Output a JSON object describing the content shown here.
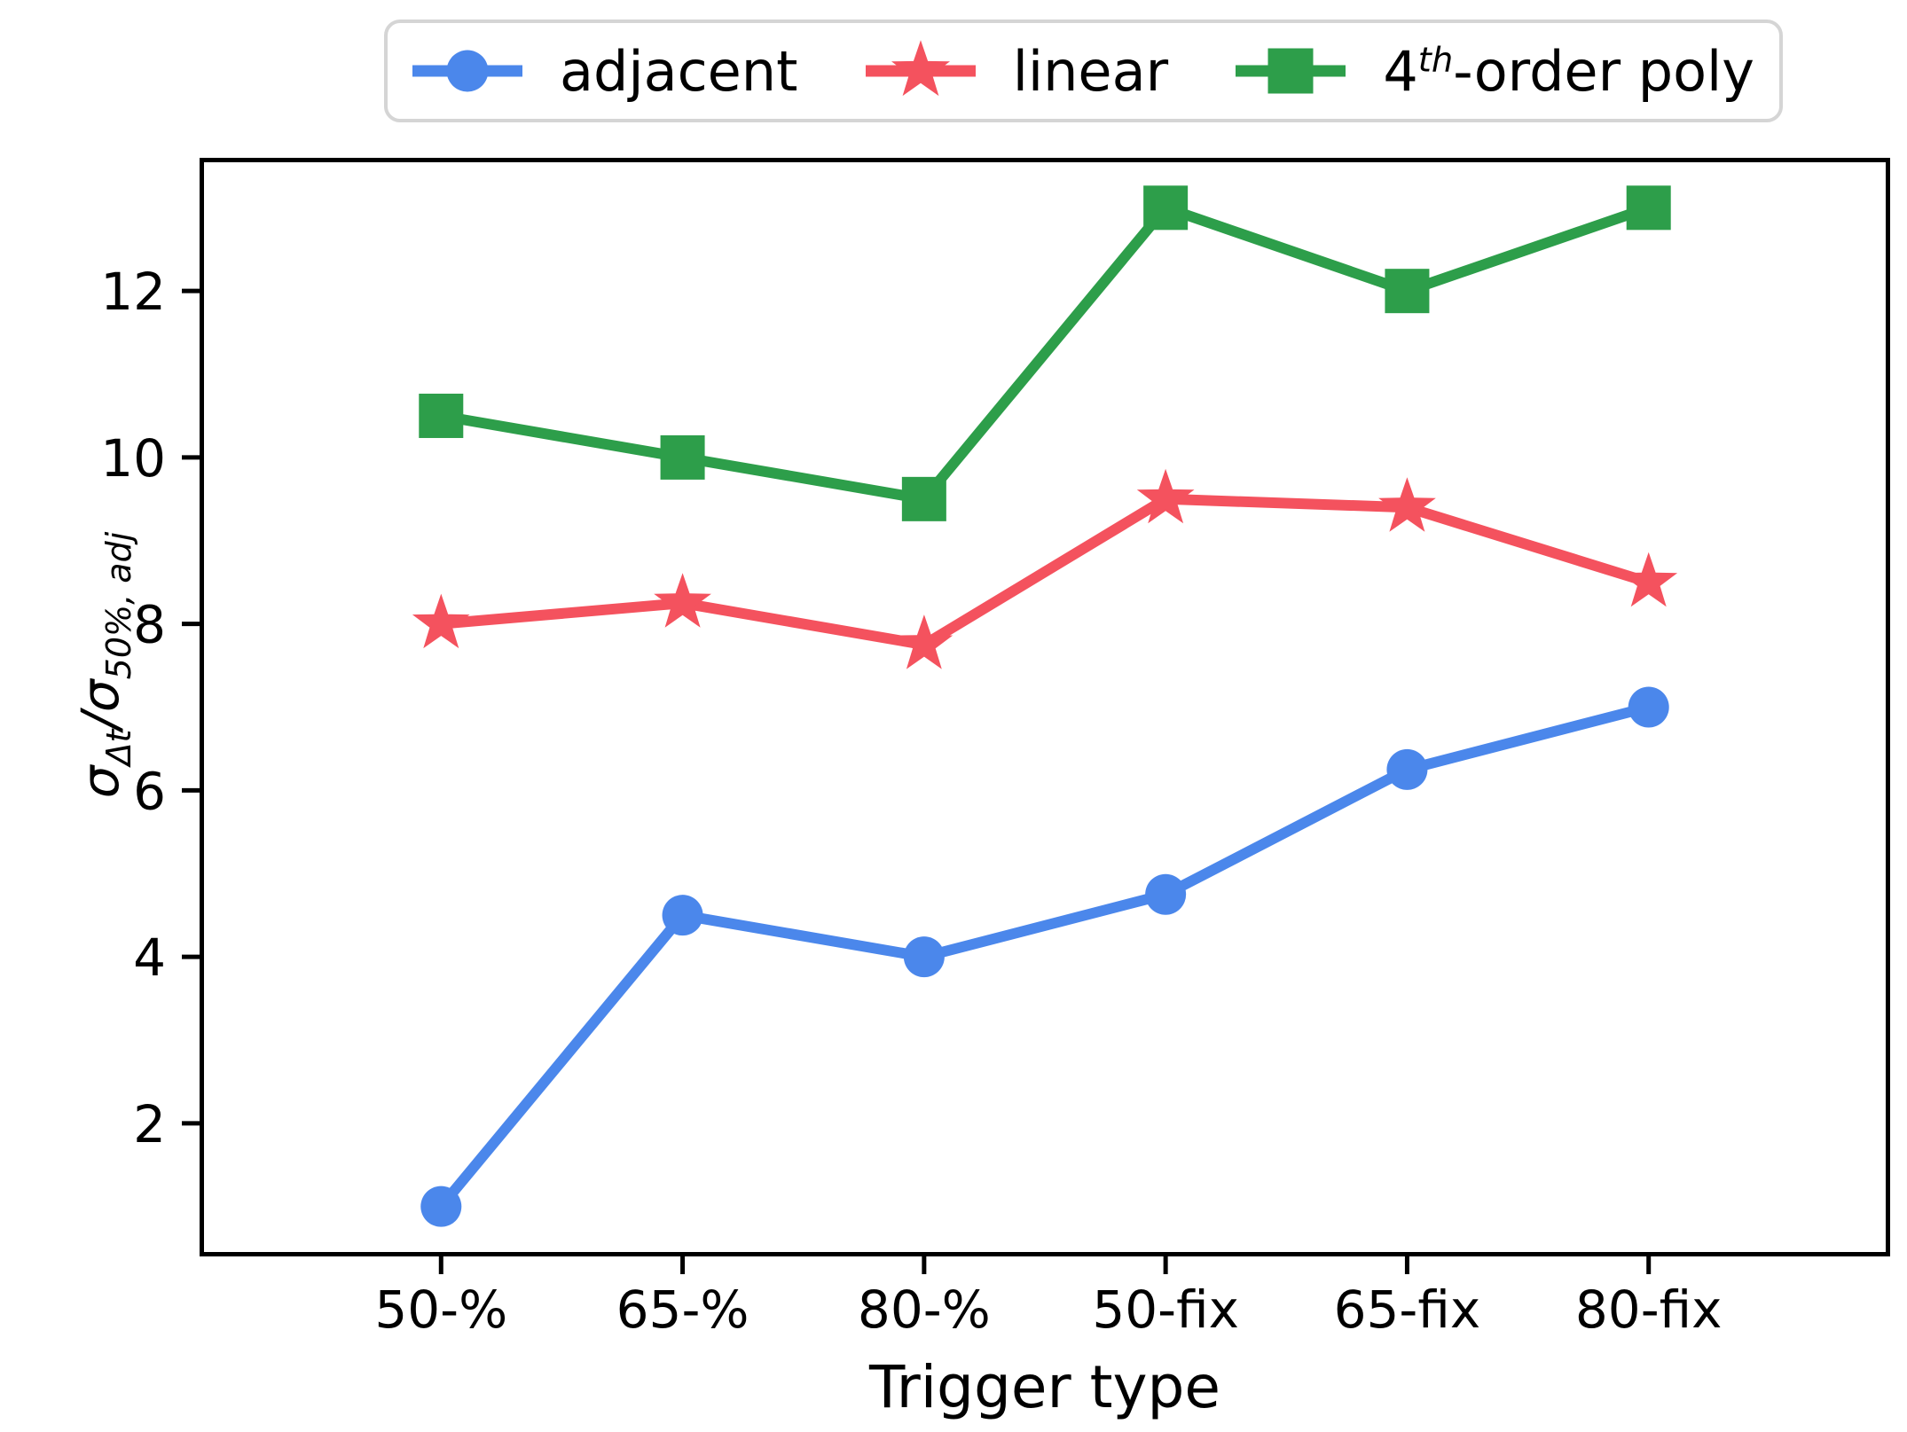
{
  "chart_data": {
    "type": "line",
    "title": "",
    "xlabel": "Trigger type",
    "ylabel": "sigma_{delta-t} / sigma_{50%, adj}",
    "ylabel_parts": {
      "sigma1": "σ",
      "sub1": "Δt",
      "slash": "/",
      "sigma2": "σ",
      "sub2": "50%, adj"
    },
    "categories": [
      "50-%",
      "65-%",
      "80-%",
      "50-fix",
      "65-fix",
      "80-fix"
    ],
    "yticks": [
      "2",
      "4",
      "6",
      "8",
      "10",
      "12"
    ],
    "ylim": [
      0.4,
      13.6
    ],
    "grid": false,
    "legend_position": "top-center",
    "axis_color": "#000000",
    "background_color": "#ffffff",
    "legend_border_color": "#d5d5d5",
    "series": [
      {
        "name": "adjacent",
        "marker": "circle",
        "color": "#4b87eb",
        "values": [
          1.0,
          4.5,
          4.0,
          4.75,
          6.25,
          7.0
        ]
      },
      {
        "name": "linear",
        "marker": "star",
        "color": "#f4525e",
        "values": [
          8.0,
          8.25,
          7.75,
          9.5,
          9.4,
          8.5
        ]
      },
      {
        "name": "4th-order poly",
        "label_parts": {
          "base": "4",
          "sup": "th",
          "rest": "-order poly"
        },
        "marker": "square",
        "color": "#2d9e4a",
        "values": [
          10.5,
          10.0,
          9.5,
          13.0,
          12.0,
          13.0
        ]
      }
    ]
  }
}
